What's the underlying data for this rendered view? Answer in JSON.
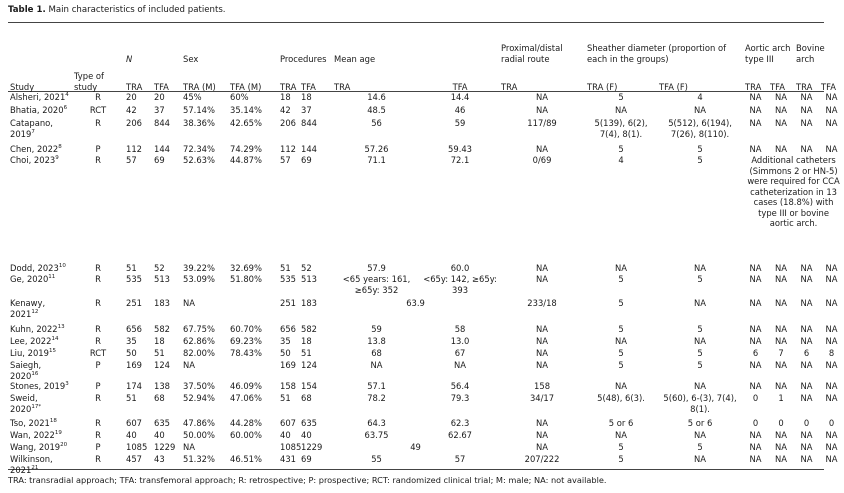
{
  "caption": {
    "label": "Table 1.",
    "text": "Main characteristics of included patients."
  },
  "headers": {
    "study": "Study",
    "type": "Type of study",
    "n": "N",
    "sex": "Sex",
    "procedures": "Procedures",
    "mean_age": "Mean age",
    "prox": "Proximal/distal radial route",
    "sheather": "Sheather diameter (proportion of each in the groups)",
    "aortic": "Aortic arch type III",
    "bovine": "Bovine arch",
    "tra": "TRA",
    "tfa": "TFA",
    "tra_m": "TRA (M)",
    "tfa_m": "TFA (M)",
    "tra_f": "TRA (F)",
    "tfa_f": "TFA (F)"
  },
  "rows": [
    {
      "study": "Alsheri, 2021",
      "ref": "4",
      "type": "R",
      "n_tra": "20",
      "n_tfa": "20",
      "sex_tra": "45%",
      "sex_tfa": "60%",
      "p_tra": "18",
      "p_tfa": "18",
      "age_tra": "14.6",
      "age_tfa": "14.4",
      "prox": "NA",
      "sh_tra": "5",
      "sh_tfa": "4",
      "ao_tra": "NA",
      "ao_tfa": "NA",
      "bo_tra": "NA",
      "bo_tfa": "NA"
    },
    {
      "study": "Bhatia, 2020",
      "ref": "6",
      "type": "RCT",
      "n_tra": "42",
      "n_tfa": "37",
      "sex_tra": "57.14%",
      "sex_tfa": "35.14%",
      "p_tra": "42",
      "p_tfa": "37",
      "age_tra": "48.5",
      "age_tfa": "46",
      "prox": "NA",
      "sh_tra": "NA",
      "sh_tfa": "NA",
      "ao_tra": "NA",
      "ao_tfa": "NA",
      "bo_tra": "NA",
      "bo_tfa": "NA"
    },
    {
      "study": "Catapano, 2019",
      "ref": "7",
      "type": "R",
      "n_tra": "206",
      "n_tfa": "844",
      "sex_tra": "38.36%",
      "sex_tfa": "42.65%",
      "p_tra": "206",
      "p_tfa": "844",
      "age_tra": "56",
      "age_tfa": "59",
      "prox": "117/89",
      "sh_tra": "5(139), 6(2), 7(4), 8(1).",
      "sh_tfa": "5(512), 6(194), 7(26), 8(110).",
      "ao_tra": "NA",
      "ao_tfa": "NA",
      "bo_tra": "NA",
      "bo_tfa": "NA"
    },
    {
      "study": "Chen, 2022",
      "ref": "8",
      "type": "P",
      "n_tra": "112",
      "n_tfa": "144",
      "sex_tra": "72.34%",
      "sex_tfa": "74.29%",
      "p_tra": "112",
      "p_tfa": "144",
      "age_tra": "57.26",
      "age_tfa": "59.43",
      "prox": "NA",
      "sh_tra": "5",
      "sh_tfa": "5",
      "ao_tra": "NA",
      "ao_tfa": "NA",
      "bo_tra": "NA",
      "bo_tfa": "NA"
    },
    {
      "study": "Choi, 2023",
      "ref": "9",
      "type": "R",
      "n_tra": "57",
      "n_tfa": "69",
      "sex_tra": "52.63%",
      "sex_tfa": "44.87%",
      "p_tra": "57",
      "p_tfa": "69",
      "age_tra": "71.1",
      "age_tfa": "72.1",
      "prox": "0/69",
      "sh_tra": "4",
      "sh_tfa": "5",
      "note": "Additional catheters (Simmons 2 or HN-5) were required for CCA catheterization in 13 cases (18.8%) with type III or bovine aortic arch."
    },
    {
      "study": "Dodd, 2023",
      "ref": "10",
      "type": "R",
      "n_tra": "51",
      "n_tfa": "52",
      "sex_tra": "39.22%",
      "sex_tfa": "32.69%",
      "p_tra": "51",
      "p_tfa": "52",
      "age_tra": "57.9",
      "age_tfa": "60.0",
      "prox": "NA",
      "sh_tra": "NA",
      "sh_tfa": "NA",
      "ao_tra": "NA",
      "ao_tfa": "NA",
      "bo_tra": "NA",
      "bo_tfa": "NA"
    },
    {
      "study": "Ge, 2020",
      "ref": "11",
      "type": "R",
      "n_tra": "535",
      "n_tfa": "513",
      "sex_tra": "53.09%",
      "sex_tfa": "51.80%",
      "p_tra": "535",
      "p_tfa": "513",
      "age_tra": "<65 years: 161, ≥65y: 352",
      "age_tfa": "<65y: 142, ≥65y: 393",
      "prox": "NA",
      "sh_tra": "5",
      "sh_tfa": "5",
      "ao_tra": "NA",
      "ao_tfa": "NA",
      "bo_tra": "NA",
      "bo_tfa": "NA"
    },
    {
      "study": "Kenawy, 2021",
      "ref": "12",
      "type": "R",
      "n_tra": "251",
      "n_tfa": "183",
      "sex_tra": "NA",
      "sex_tfa": "",
      "p_tra": "251",
      "p_tfa": "183",
      "age_span": "63.9",
      "prox": "233/18",
      "sh_tra": "5",
      "sh_tfa": "NA",
      "ao_tra": "NA",
      "ao_tfa": "NA",
      "bo_tra": "NA",
      "bo_tfa": "NA"
    },
    {
      "study": "Kuhn, 2022",
      "ref": "13",
      "type": "R",
      "n_tra": "656",
      "n_tfa": "582",
      "sex_tra": "67.75%",
      "sex_tfa": "60.70%",
      "p_tra": "656",
      "p_tfa": "582",
      "age_tra": "59",
      "age_tfa": "58",
      "prox": "NA",
      "sh_tra": "5",
      "sh_tfa": "5",
      "ao_tra": "NA",
      "ao_tfa": "NA",
      "bo_tra": "NA",
      "bo_tfa": "NA"
    },
    {
      "study": "Lee, 2022",
      "ref": "14",
      "type": "R",
      "n_tra": "35",
      "n_tfa": "18",
      "sex_tra": "62.86%",
      "sex_tfa": "69.23%",
      "p_tra": "35",
      "p_tfa": "18",
      "age_tra": "13.8",
      "age_tfa": "13.0",
      "prox": "NA",
      "sh_tra": "NA",
      "sh_tfa": "NA",
      "ao_tra": "NA",
      "ao_tfa": "NA",
      "bo_tra": "NA",
      "bo_tfa": "NA"
    },
    {
      "study": "Liu, 2019",
      "ref": "15",
      "type": "RCT",
      "n_tra": "50",
      "n_tfa": "51",
      "sex_tra": "82.00%",
      "sex_tfa": "78.43%",
      "p_tra": "50",
      "p_tfa": "51",
      "age_tra": "68",
      "age_tfa": "67",
      "prox": "NA",
      "sh_tra": "5",
      "sh_tfa": "5",
      "ao_tra": "6",
      "ao_tfa": "7",
      "bo_tra": "6",
      "bo_tfa": "8"
    },
    {
      "study": "Saiegh, 2020",
      "ref": "16",
      "type": "P",
      "n_tra": "169",
      "n_tfa": "124",
      "sex_tra": "NA",
      "sex_tfa": "",
      "p_tra": "169",
      "p_tfa": "124",
      "age_tra": "NA",
      "age_tfa": "NA",
      "prox": "NA",
      "sh_tra": "5",
      "sh_tfa": "5",
      "ao_tra": "NA",
      "ao_tfa": "NA",
      "bo_tra": "NA",
      "bo_tfa": "NA"
    },
    {
      "study": "Stones, 2019",
      "ref": "3",
      "type": "P",
      "n_tra": "174",
      "n_tfa": "138",
      "sex_tra": "37.50%",
      "sex_tfa": "46.09%",
      "p_tra": "158",
      "p_tfa": "154",
      "age_tra": "57.1",
      "age_tfa": "56.4",
      "prox": "158",
      "sh_tra": "NA",
      "sh_tfa": "NA",
      "ao_tra": "NA",
      "ao_tfa": "NA",
      "bo_tra": "NA",
      "bo_tfa": "NA"
    },
    {
      "study": "Sweid, 2020",
      "ref": "17*",
      "type": "R",
      "n_tra": "51",
      "n_tfa": "68",
      "sex_tra": "52.94%",
      "sex_tfa": "47.06%",
      "p_tra": "51",
      "p_tfa": "68",
      "age_tra": "78.2",
      "age_tfa": "79.3",
      "prox": "34/17",
      "sh_tra": "5(48), 6(3).",
      "sh_tfa": "5(60), 6-(3), 7(4), 8(1).",
      "ao_tra": "0",
      "ao_tfa": "1",
      "bo_tra": "NA",
      "bo_tfa": "NA"
    },
    {
      "study": "Tso, 2021",
      "ref": "18",
      "type": "R",
      "n_tra": "607",
      "n_tfa": "635",
      "sex_tra": "47.86%",
      "sex_tfa": "44.28%",
      "p_tra": "607",
      "p_tfa": "635",
      "age_tra": "64.3",
      "age_tfa": "62.3",
      "prox": "NA",
      "sh_tra": "5 or 6",
      "sh_tfa": "5 or 6",
      "ao_tra": "0",
      "ao_tfa": "0",
      "bo_tra": "0",
      "bo_tfa": "0"
    },
    {
      "study": "Wan, 2022",
      "ref": "19",
      "type": "R",
      "n_tra": "40",
      "n_tfa": "40",
      "sex_tra": "50.00%",
      "sex_tfa": "60.00%",
      "p_tra": "40",
      "p_tfa": "40",
      "age_tra": "63.75",
      "age_tfa": "62.67",
      "prox": "NA",
      "sh_tra": "NA",
      "sh_tfa": "NA",
      "ao_tra": "NA",
      "ao_tfa": "NA",
      "bo_tra": "NA",
      "bo_tfa": "NA"
    },
    {
      "study": "Wang, 2019",
      "ref": "20",
      "type": "P",
      "n_tra": "1085",
      "n_tfa": "1229",
      "sex_tra": "NA",
      "sex_tfa": "",
      "p_tra": "1085",
      "p_tfa": "1229",
      "age_span": "49",
      "prox": "NA",
      "sh_tra": "5",
      "sh_tfa": "5",
      "ao_tra": "NA",
      "ao_tfa": "NA",
      "bo_tra": "NA",
      "bo_tfa": "NA"
    },
    {
      "study": "Wilkinson, 2021",
      "ref": "21",
      "type": "R",
      "n_tra": "457",
      "n_tfa": "43",
      "sex_tra": "51.32%",
      "sex_tfa": "46.51%",
      "p_tra": "431",
      "p_tfa": "69",
      "age_tra": "55",
      "age_tfa": "57",
      "prox": "207/222",
      "sh_tra": "5",
      "sh_tfa": "NA",
      "ao_tra": "NA",
      "ao_tfa": "NA",
      "bo_tra": "NA",
      "bo_tfa": "NA"
    }
  ],
  "footnote": "TRA: transradial approach; TFA: transfemoral approach; R: retrospective; P: prospective; RCT: randomized clinical trial; M: male; NA: not available."
}
